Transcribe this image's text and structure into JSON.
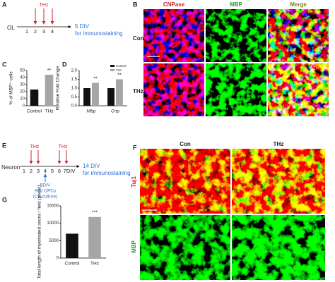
{
  "panel_a": {
    "label": "A",
    "start": "OL",
    "days": [
      "1",
      "2",
      "3",
      "4"
    ],
    "treatment": "THz",
    "end": "5 DIV",
    "end_note": "for immunostaining"
  },
  "panel_b": {
    "label": "B",
    "columns": [
      "CNPase",
      "MBP",
      "Merge"
    ],
    "rows": [
      "Con",
      "THz"
    ]
  },
  "panel_e": {
    "label": "E",
    "start": "Neuron",
    "days": [
      "1",
      "2",
      "3",
      "4",
      "5",
      "6",
      "7DIV"
    ],
    "treatments": [
      "THz",
      "THz"
    ],
    "end": "14 DIV",
    "end_note": "for immunostaining",
    "coculture": [
      "5DIV",
      "Add OPCs",
      "(Co-culture)"
    ]
  },
  "panel_f": {
    "label": "F",
    "columns": [
      "Con",
      "THz"
    ],
    "rows": [
      "Tuj1",
      "MBP"
    ]
  },
  "chart_data": [
    {
      "type": "bar",
      "label": "C",
      "y_label": "% of MBP⁺ cells",
      "categories": [
        "Control",
        "THz"
      ],
      "values": [
        23,
        44
      ],
      "colors": [
        "#111111",
        "#a6a6a6"
      ],
      "annotations": [
        null,
        "**"
      ],
      "ylim": [
        0,
        50
      ],
      "yticks": [
        0,
        10,
        20,
        30,
        40,
        50
      ]
    },
    {
      "type": "bar",
      "label": "D",
      "y_label": "Relative Fold Change",
      "categories": [
        "Mbp",
        "Cnp"
      ],
      "category_style": "italic",
      "series": [
        {
          "name": "Control",
          "color": "#111111",
          "values": [
            1.0,
            1.0
          ]
        },
        {
          "name": "THz",
          "color": "#a6a6a6",
          "values": [
            1.3,
            1.5
          ],
          "annotations": [
            "**",
            "**"
          ]
        }
      ],
      "legend": "top-right",
      "ylim": [
        0,
        2
      ],
      "yticks": [
        {
          "value": 0,
          "label": "0.0"
        },
        {
          "value": 0.5,
          "label": "0.5"
        },
        {
          "value": 1,
          "label": "1.0"
        },
        {
          "value": 1.5,
          "label": "1.5"
        },
        {
          "value": 2,
          "label": "2.0"
        }
      ]
    },
    {
      "type": "bar",
      "label": "G",
      "y_label": "Total length of myelinated axons / field (pixels)",
      "categories": [
        "Control",
        "THz"
      ],
      "values": [
        7000,
        11800
      ],
      "colors": [
        "#111111",
        "#a6a6a6"
      ],
      "annotations": [
        null,
        "***"
      ],
      "ylim": [
        0,
        15000
      ],
      "yticks": [
        0,
        5000,
        10000,
        15000
      ]
    }
  ]
}
